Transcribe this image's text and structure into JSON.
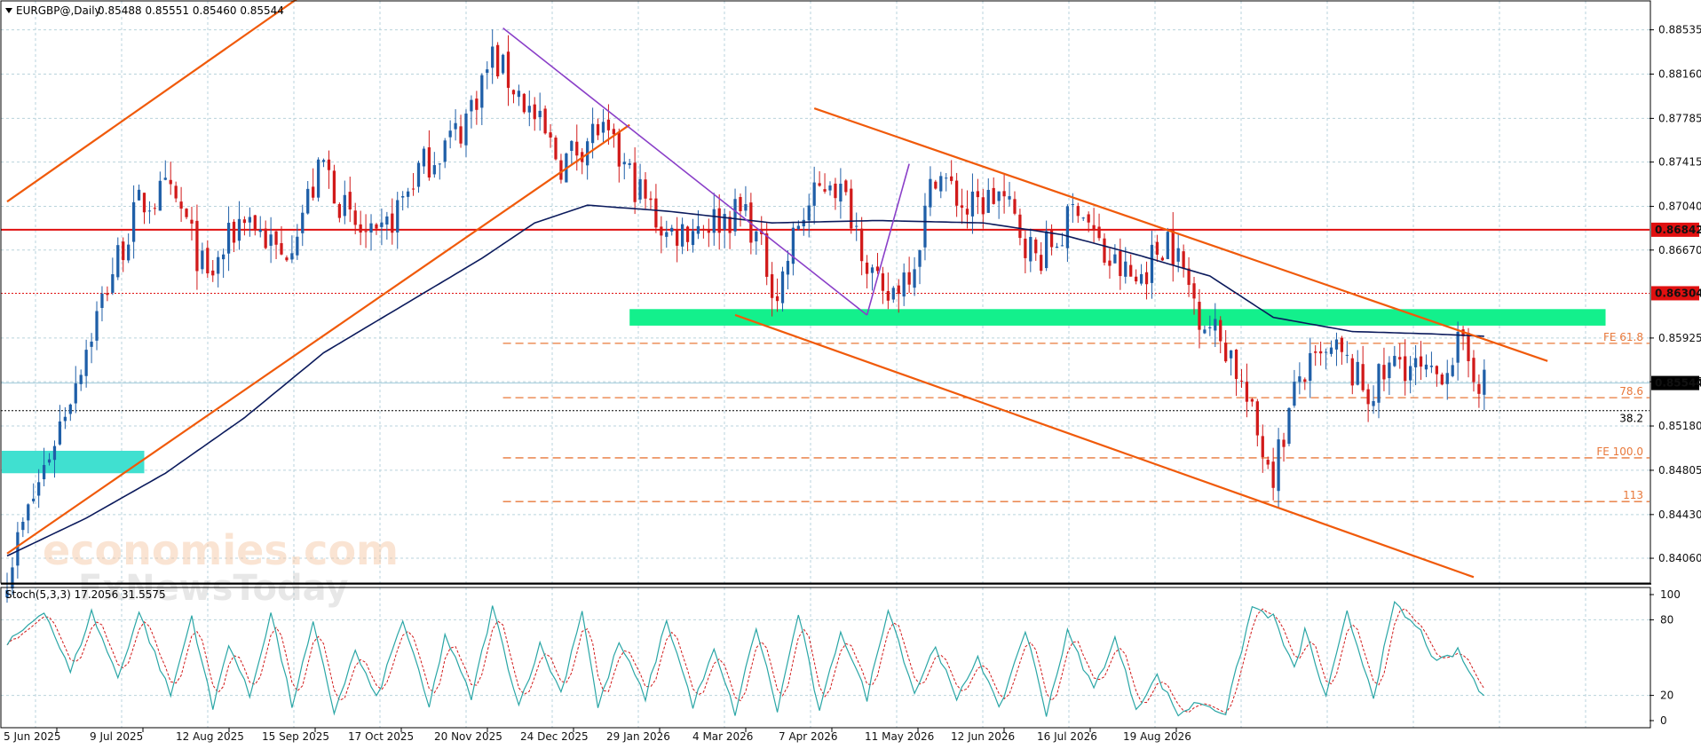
{
  "header": {
    "symbol_label": "EURGBP@,Daily",
    "ohlc_label": "0.85488 0.85551 0.85460 0.85544"
  },
  "watermark": {
    "line1": "economies.com",
    "line2": "FxNewsToday"
  },
  "colors": {
    "bull_candle": "#1f5fa8",
    "bear_candle": "#d11a1a",
    "moving_average": "#0b1a5c",
    "trendline": "#f05a0a",
    "purple_line": "#8a3fc8",
    "resistance_line": "#e01010",
    "support_zone": "#13f08c",
    "left_zone": "#40e0d0",
    "fib_line": "#e8783a",
    "stoch_main": "#2aa6a6",
    "stoch_signal": "#d11a1a"
  },
  "chart_data": [
    {
      "type": "candlestick",
      "symbol": "EURGBP@",
      "timeframe": "Daily",
      "ylim": [
        0.8385,
        0.8878
      ],
      "grid": true,
      "y_ticks": [
        0.8406,
        0.8443,
        0.84805,
        0.8518,
        0.85555,
        0.85925,
        0.8667,
        0.8704,
        0.87415,
        0.87785,
        0.8816,
        0.88535
      ],
      "y_tick_labels": [
        "0.84060",
        "0.84430",
        "0.84805",
        "0.85180",
        "0.85555",
        "0.85925",
        "0.86670",
        "0.87040",
        "0.87415",
        "0.87785",
        "0.88160",
        "0.88535"
      ],
      "x_tick_labels": [
        "5 Jun 2025",
        "9 Jul 2025",
        "12 Aug 2025",
        "15 Sep 2025",
        "17 Oct 2025",
        "20 Nov 2025",
        "24 Dec 2025",
        "29 Jan 2026",
        "4 Mar 2026",
        "7 Apr 2026",
        "11 May 2026",
        "12 Jun 2026",
        "16 Jul 2026",
        "19 Aug 2026"
      ],
      "price_labels": [
        {
          "value": 0.86842,
          "text": "0.86842",
          "color": "#e01010",
          "style": "solid"
        },
        {
          "value": 0.86304,
          "text": "0.86304",
          "color": "#e01010",
          "style": "dotted"
        },
        {
          "value": 0.85544,
          "text": "0.85544",
          "color": "#000000",
          "style": "current"
        }
      ],
      "fib_levels": [
        {
          "label": "FE 61.8",
          "value": 0.8588
        },
        {
          "label": "78.6",
          "value": 0.8542
        },
        {
          "label": "38.2",
          "value": 0.8531,
          "style": "black-dotted"
        },
        {
          "label": "FE 100.0",
          "value": 0.8491
        },
        {
          "label": "113",
          "value": 0.8454
        }
      ],
      "anchors": [
        [
          0,
          0.8395
        ],
        [
          10,
          0.852
        ],
        [
          20,
          0.865
        ],
        [
          25,
          0.8705
        ],
        [
          30,
          0.8715
        ],
        [
          33,
          0.87
        ],
        [
          38,
          0.864
        ],
        [
          45,
          0.87
        ],
        [
          52,
          0.866
        ],
        [
          60,
          0.874
        ],
        [
          65,
          0.869
        ],
        [
          70,
          0.867
        ],
        [
          78,
          0.8735
        ],
        [
          86,
          0.877
        ],
        [
          92,
          0.883
        ],
        [
          97,
          0.88
        ],
        [
          105,
          0.874
        ],
        [
          112,
          0.877
        ],
        [
          118,
          0.873
        ],
        [
          125,
          0.868
        ],
        [
          132,
          0.869
        ],
        [
          140,
          0.87
        ],
        [
          146,
          0.863
        ],
        [
          150,
          0.869
        ],
        [
          156,
          0.873
        ],
        [
          160,
          0.87
        ],
        [
          163,
          0.866
        ],
        [
          166,
          0.862
        ],
        [
          172,
          0.866
        ],
        [
          176,
          0.8735
        ],
        [
          182,
          0.87
        ],
        [
          188,
          0.8715
        ],
        [
          195,
          0.866
        ],
        [
          200,
          0.868
        ],
        [
          203,
          0.871
        ],
        [
          208,
          0.866
        ],
        [
          214,
          0.864
        ],
        [
          220,
          0.868
        ],
        [
          226,
          0.8615
        ],
        [
          232,
          0.858
        ],
        [
          237,
          0.851
        ],
        [
          240,
          0.848
        ],
        [
          245,
          0.856
        ],
        [
          252,
          0.858
        ],
        [
          258,
          0.8545
        ],
        [
          264,
          0.8575
        ],
        [
          270,
          0.8555
        ],
        [
          275,
          0.8585
        ],
        [
          279,
          0.856
        ],
        [
          280,
          0.8554
        ]
      ],
      "candle_count": 281,
      "series": [
        {
          "name": "EURGBP@",
          "kind": "candles"
        },
        {
          "kind": "moving-average",
          "points": [
            [
              0,
              0.8408
            ],
            [
              15,
              0.844
            ],
            [
              30,
              0.8478
            ],
            [
              45,
              0.8525
            ],
            [
              60,
              0.858
            ],
            [
              75,
              0.862
            ],
            [
              90,
              0.866
            ],
            [
              100,
              0.869
            ],
            [
              110,
              0.8705
            ],
            [
              125,
              0.87
            ],
            [
              145,
              0.869
            ],
            [
              165,
              0.8692
            ],
            [
              185,
              0.869
            ],
            [
              200,
              0.868
            ],
            [
              215,
              0.8662
            ],
            [
              228,
              0.8645
            ],
            [
              240,
              0.861
            ],
            [
              255,
              0.8598
            ],
            [
              270,
              0.8596
            ],
            [
              280,
              0.8594
            ]
          ]
        }
      ],
      "drawings": {
        "trendlines": [
          {
            "from": [
              0,
              0.8708
            ],
            "to": [
              56,
              0.8883
            ]
          },
          {
            "from": [
              0,
              0.841
            ],
            "to": [
              118,
              0.8773
            ]
          },
          {
            "from": [
              153,
              0.8787
            ],
            "to": [
              292,
              0.8573
            ]
          },
          {
            "from": [
              138,
              0.8612
            ],
            "to": [
              278,
              0.839
            ]
          }
        ],
        "purple_lines": [
          {
            "from": [
              94,
              0.8855
            ],
            "to": [
              163,
              0.8612
            ]
          },
          {
            "from": [
              163,
              0.8612
            ],
            "to": [
              171,
              0.874
            ]
          }
        ],
        "resistance": {
          "value": 0.86842
        },
        "dotted_level": {
          "value": 0.86304
        },
        "support_zone": {
          "x_from": 118,
          "x_to": 303,
          "y_from": 0.8603,
          "y_to": 0.8617
        },
        "left_zone": {
          "x_from": 0,
          "x_to": 26,
          "y_from": 0.8478,
          "y_to": 0.8497
        }
      }
    },
    {
      "type": "line",
      "title": "Stoch(5,3,3) 17.2056 31.5575",
      "ylim": [
        0,
        100
      ],
      "y_ticks": [
        0,
        20,
        80,
        100
      ],
      "series": [
        {
          "kind": "main-line",
          "peaks": [
            [
              0,
              60
            ],
            [
              7,
              88
            ],
            [
              12,
              38
            ],
            [
              16,
              86
            ],
            [
              21,
              34
            ],
            [
              25,
              86
            ],
            [
              31,
              20
            ],
            [
              35,
              83
            ],
            [
              39,
              9
            ],
            [
              42,
              62
            ],
            [
              46,
              19
            ],
            [
              50,
              86
            ],
            [
              54,
              12
            ],
            [
              58,
              76
            ],
            [
              62,
              7
            ],
            [
              66,
              55
            ],
            [
              70,
              17
            ],
            [
              75,
              80
            ],
            [
              80,
              10
            ],
            [
              83,
              68
            ],
            [
              88,
              18
            ],
            [
              92,
              90
            ],
            [
              97,
              12
            ],
            [
              101,
              60
            ],
            [
              105,
              22
            ],
            [
              109,
              88
            ],
            [
              112,
              10
            ],
            [
              116,
              62
            ],
            [
              121,
              18
            ],
            [
              125,
              80
            ],
            [
              130,
              12
            ],
            [
              134,
              55
            ],
            [
              138,
              6
            ],
            [
              142,
              74
            ],
            [
              146,
              8
            ],
            [
              150,
              85
            ],
            [
              154,
              6
            ],
            [
              158,
              72
            ],
            [
              163,
              18
            ],
            [
              167,
              90
            ],
            [
              172,
              22
            ],
            [
              176,
              60
            ],
            [
              180,
              15
            ],
            [
              184,
              52
            ],
            [
              188,
              8
            ],
            [
              193,
              72
            ],
            [
              197,
              6
            ],
            [
              201,
              70
            ],
            [
              206,
              25
            ],
            [
              210,
              65
            ],
            [
              214,
              10
            ],
            [
              218,
              35
            ],
            [
              222,
              5
            ],
            [
              226,
              15
            ],
            [
              231,
              6
            ],
            [
              236,
              90
            ],
            [
              240,
              82
            ],
            [
              244,
              40
            ],
            [
              246,
              72
            ],
            [
              250,
              18
            ],
            [
              254,
              85
            ],
            [
              259,
              20
            ],
            [
              263,
              92
            ],
            [
              268,
              70
            ],
            [
              271,
              45
            ],
            [
              275,
              55
            ],
            [
              280,
              17
            ]
          ]
        }
      ]
    }
  ]
}
